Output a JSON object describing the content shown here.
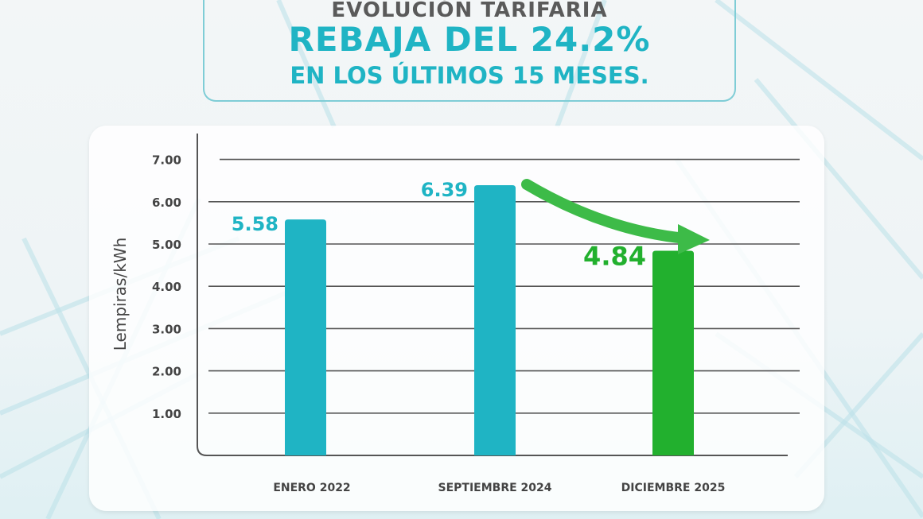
{
  "header": {
    "line1": "EVOLUCIÓN TARIFARIA",
    "line2": "REBAJA DEL 24.2%",
    "line3": "EN LOS ÚLTIMOS 15 MESES."
  },
  "chart_data": {
    "type": "bar",
    "title": "",
    "xlabel": "",
    "ylabel": "Lempiras/kWh",
    "ylim": [
      0,
      7
    ],
    "yticks": [
      "1.00",
      "2.00",
      "3.00",
      "4.00",
      "5.00",
      "6.00",
      "7.00"
    ],
    "categories": [
      "ENERO 2022",
      "SEPTIEMBRE 2024",
      "DICIEMBRE 2025"
    ],
    "values": [
      5.58,
      6.39,
      4.84
    ],
    "data_labels": [
      "5.58",
      "6.39",
      "4.84"
    ],
    "bar_colors": [
      "#1fb4c4",
      "#1fb4c4",
      "#22b02e"
    ],
    "label_colors": [
      "#1fb4c4",
      "#1fb4c4",
      "#22b02e"
    ],
    "annotation": "green-arrow-decrease",
    "grid": true
  },
  "colors": {
    "accent": "#1fb4c4",
    "green": "#22b02e",
    "text": "#444444"
  }
}
